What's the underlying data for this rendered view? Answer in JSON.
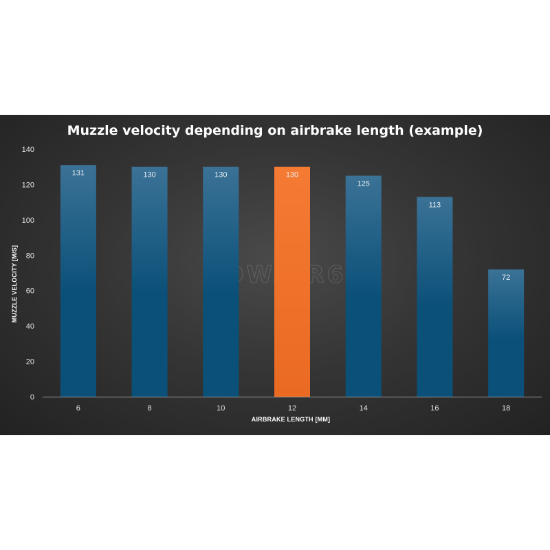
{
  "watermark": "POWAIR6",
  "colors": {
    "bar_top": "#3b7296",
    "bar_bottom": "#0b5079",
    "highlight_top": "#f57a33",
    "highlight_bottom": "#ea6a22",
    "axis": "#9a9a9a",
    "background": "#2b2b2b"
  },
  "chart_data": {
    "type": "bar",
    "title": "Muzzle velocity depending on airbrake length (example)",
    "xlabel": "AIRBRAKE LENGTH [MM]",
    "ylabel": "MUZZLE VELOCITY [M/S]",
    "categories": [
      "6",
      "8",
      "10",
      "12",
      "14",
      "16",
      "18"
    ],
    "values": [
      131,
      130,
      130,
      130,
      125,
      113,
      72
    ],
    "data_labels": [
      "131",
      "130",
      "130",
      "130",
      "125",
      "113",
      "72"
    ],
    "highlight_category": "12",
    "ylim": [
      0,
      140
    ],
    "yticks": [
      0,
      20,
      40,
      60,
      80,
      100,
      120,
      140
    ],
    "grid": false,
    "legend": "none"
  }
}
